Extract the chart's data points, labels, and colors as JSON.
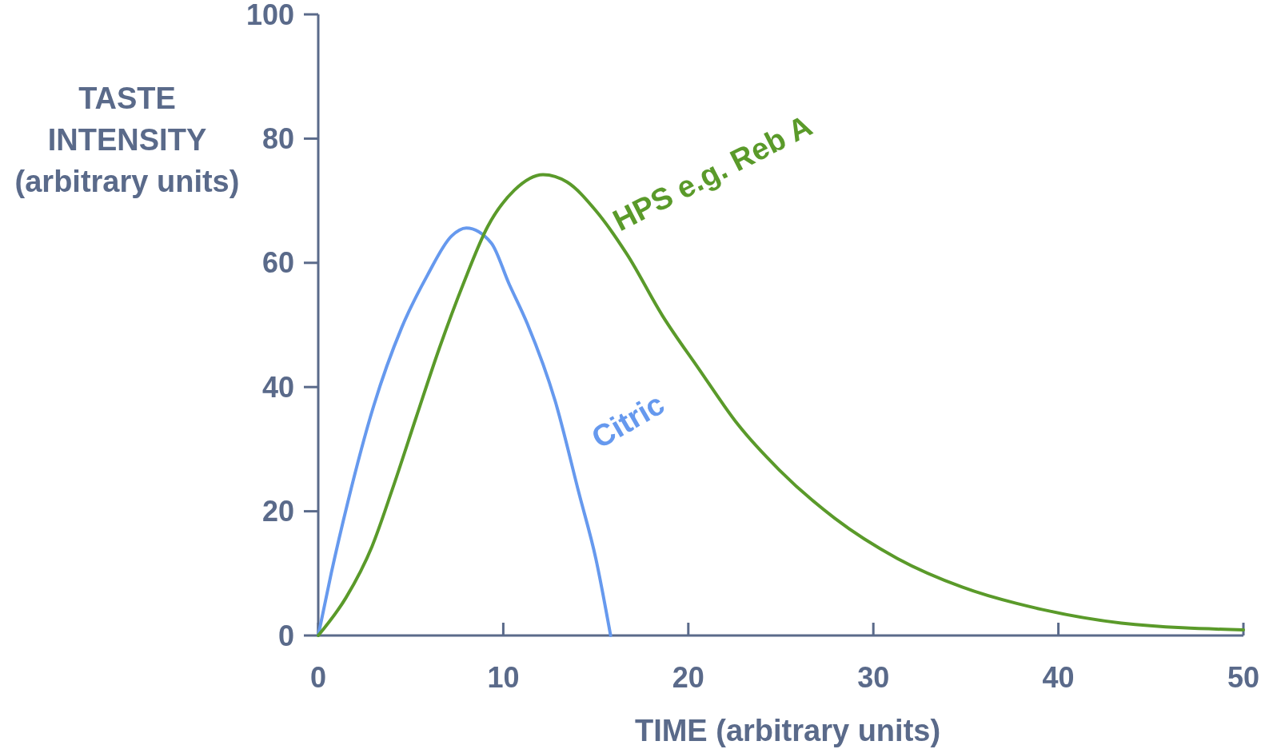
{
  "chart_data": {
    "type": "line",
    "xlabel": "TIME (arbitrary units)",
    "ylabel": "TASTE\nINTENSITY\n(arbitrary units)",
    "xlim": [
      0,
      50
    ],
    "ylim": [
      0,
      100
    ],
    "xticks": [
      0,
      10,
      20,
      30,
      40,
      50
    ],
    "yticks": [
      0,
      20,
      40,
      60,
      80,
      100
    ],
    "grid": false,
    "marker": "none",
    "line_style": "solid",
    "series": [
      {
        "name": "Citric",
        "color": "#6699ee",
        "x": [
          0,
          0.7,
          1.6,
          3,
          4.5,
          5.9,
          7.2,
          8,
          9.35,
          10.3,
          11.3,
          12.8,
          14.1,
          15,
          15.8
        ],
        "values": [
          0,
          10,
          21.5,
          37,
          49.5,
          58,
          64.3,
          65.6,
          63.2,
          56.7,
          50.2,
          37.8,
          22.8,
          12.4,
          0
        ]
      },
      {
        "name": "HPS e.g. Reb A",
        "color": "#5a9a2a",
        "x": [
          0,
          1.5,
          2.9,
          4,
          5.3,
          6.55,
          7.85,
          9.15,
          10.6,
          12.15,
          13.45,
          15,
          16.7,
          18.6,
          20.55,
          22.7,
          24.9,
          27.9,
          31.3,
          34.8,
          39.1,
          43.4,
          50
        ],
        "values": [
          0,
          6.1,
          14.3,
          23.5,
          35.2,
          46.3,
          56.7,
          65.8,
          71.7,
          74.2,
          73,
          68.4,
          61.3,
          51.5,
          43,
          33.9,
          26.7,
          18.9,
          12.4,
          7.8,
          4.2,
          2,
          0.9
        ]
      }
    ]
  }
}
